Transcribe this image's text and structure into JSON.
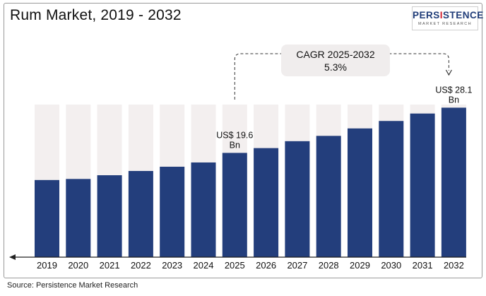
{
  "title": "Rum Market, 2019 - 2032",
  "logo": {
    "main": "PERSISTENCE",
    "sub": "MARKET RESEARCH"
  },
  "source": "Source: Persistence Market Research",
  "cagr": {
    "label": "CAGR 2025-2032",
    "value": "5.3%"
  },
  "colors": {
    "bar": "#233e7c",
    "background_bar": "#f3efef",
    "axis": "#222222",
    "callout": "#f0eded"
  },
  "chart_data": {
    "type": "bar",
    "title": "Rum Market, 2019 - 2032",
    "xlabel": "",
    "ylabel": "",
    "categories": [
      "2019",
      "2020",
      "2021",
      "2022",
      "2023",
      "2024",
      "2025",
      "2026",
      "2027",
      "2028",
      "2029",
      "2030",
      "2031",
      "2032"
    ],
    "values": [
      14.5,
      14.7,
      15.4,
      16.2,
      17.0,
      17.8,
      19.6,
      20.5,
      21.8,
      22.8,
      24.2,
      25.6,
      27.0,
      28.1
    ],
    "ylim": [
      0,
      34
    ],
    "grid": false,
    "annotations": [
      {
        "category": "2025",
        "line1": "US$ 19.6",
        "line2": "Bn"
      },
      {
        "category": "2032",
        "line1": "US$ 28.1",
        "line2": "Bn"
      }
    ]
  }
}
